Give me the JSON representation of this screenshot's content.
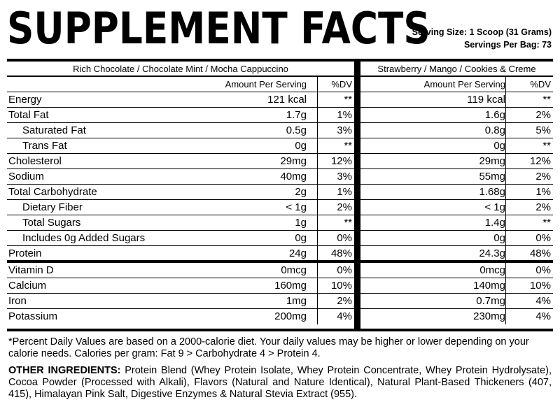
{
  "title": "SUPPLEMENT FACTS",
  "serving": {
    "size": "Serving Size: 1 Scoop (31 Grams)",
    "per_bag": "Servings Per Bag: 73"
  },
  "columns": {
    "amount_header": "Amount Per Serving",
    "dv_header": "%DV"
  },
  "flavors": {
    "left": "Rich Chocolate / Chocolate Mint / Mocha Cappuccino",
    "right": "Strawberry / Mango / Cookies & Creme"
  },
  "nutrients": [
    {
      "name": "Energy",
      "left_amt": "121 kcal",
      "left_dv": "**",
      "right_amt": "119 kcal",
      "right_dv": "**"
    },
    {
      "name": "Total Fat",
      "left_amt": "1.7g",
      "left_dv": "1%",
      "right_amt": "1.6g",
      "right_dv": "2%"
    },
    {
      "name": "Saturated Fat",
      "left_amt": "0.5g",
      "left_dv": "3%",
      "right_amt": "0.8g",
      "right_dv": "5%"
    },
    {
      "name": "Trans Fat",
      "left_amt": "0g",
      "left_dv": "**",
      "right_amt": "0g",
      "right_dv": "**"
    },
    {
      "name": "Cholesterol",
      "left_amt": "29mg",
      "left_dv": "12%",
      "right_amt": "29mg",
      "right_dv": "12%"
    },
    {
      "name": "Sodium",
      "left_amt": "40mg",
      "left_dv": "3%",
      "right_amt": "55mg",
      "right_dv": "2%"
    },
    {
      "name": "Total Carbohydrate",
      "left_amt": "2g",
      "left_dv": "1%",
      "right_amt": "1.68g",
      "right_dv": "1%"
    },
    {
      "name": "Dietary Fiber",
      "left_amt": "< 1g",
      "left_dv": "2%",
      "right_amt": "< 1g",
      "right_dv": "2%"
    },
    {
      "name": "Total Sugars",
      "left_amt": "1g",
      "left_dv": "**",
      "right_amt": "1.4g",
      "right_dv": "**"
    },
    {
      "name": "Includes 0g Added Sugars",
      "left_amt": "0g",
      "left_dv": "0%",
      "right_amt": "0g",
      "right_dv": "0%"
    },
    {
      "name": "Protein",
      "left_amt": "24g",
      "left_dv": "48%",
      "right_amt": "24.3g",
      "right_dv": "48%"
    }
  ],
  "vitamins": [
    {
      "name": "Vitamin D",
      "left_amt": "0mcg",
      "left_dv": "0%",
      "right_amt": "0mcg",
      "right_dv": "0%"
    },
    {
      "name": "Calcium",
      "left_amt": "160mg",
      "left_dv": "10%",
      "right_amt": "140mg",
      "right_dv": "10%"
    },
    {
      "name": "Iron",
      "left_amt": "1mg",
      "left_dv": "2%",
      "right_amt": "0.7mg",
      "right_dv": "4%"
    },
    {
      "name": "Potassium",
      "left_amt": "200mg",
      "left_dv": "4%",
      "right_amt": "230mg",
      "right_dv": "4%"
    }
  ],
  "footnote": "*Percent Daily Values are based on a 2000-calorie diet. Your daily values may be higher or lower depending on your calorie needs. Calories per gram: Fat 9 > Carbohydrate 4 > Protein 4.",
  "ingredients": {
    "label": "OTHER INGREDIENTS:",
    "text": " Protein Blend (Whey Protein Isolate, Whey Protein Concentrate, Whey Protein Hydrolysate), Cocoa Powder (Processed with Alkali), Flavors (Natural and Nature Identical), Natural Plant-Based Thickeners (407, 415), Himalayan Pink Salt, Digestive Enzymes & Natural Stevia Extract (955)."
  }
}
